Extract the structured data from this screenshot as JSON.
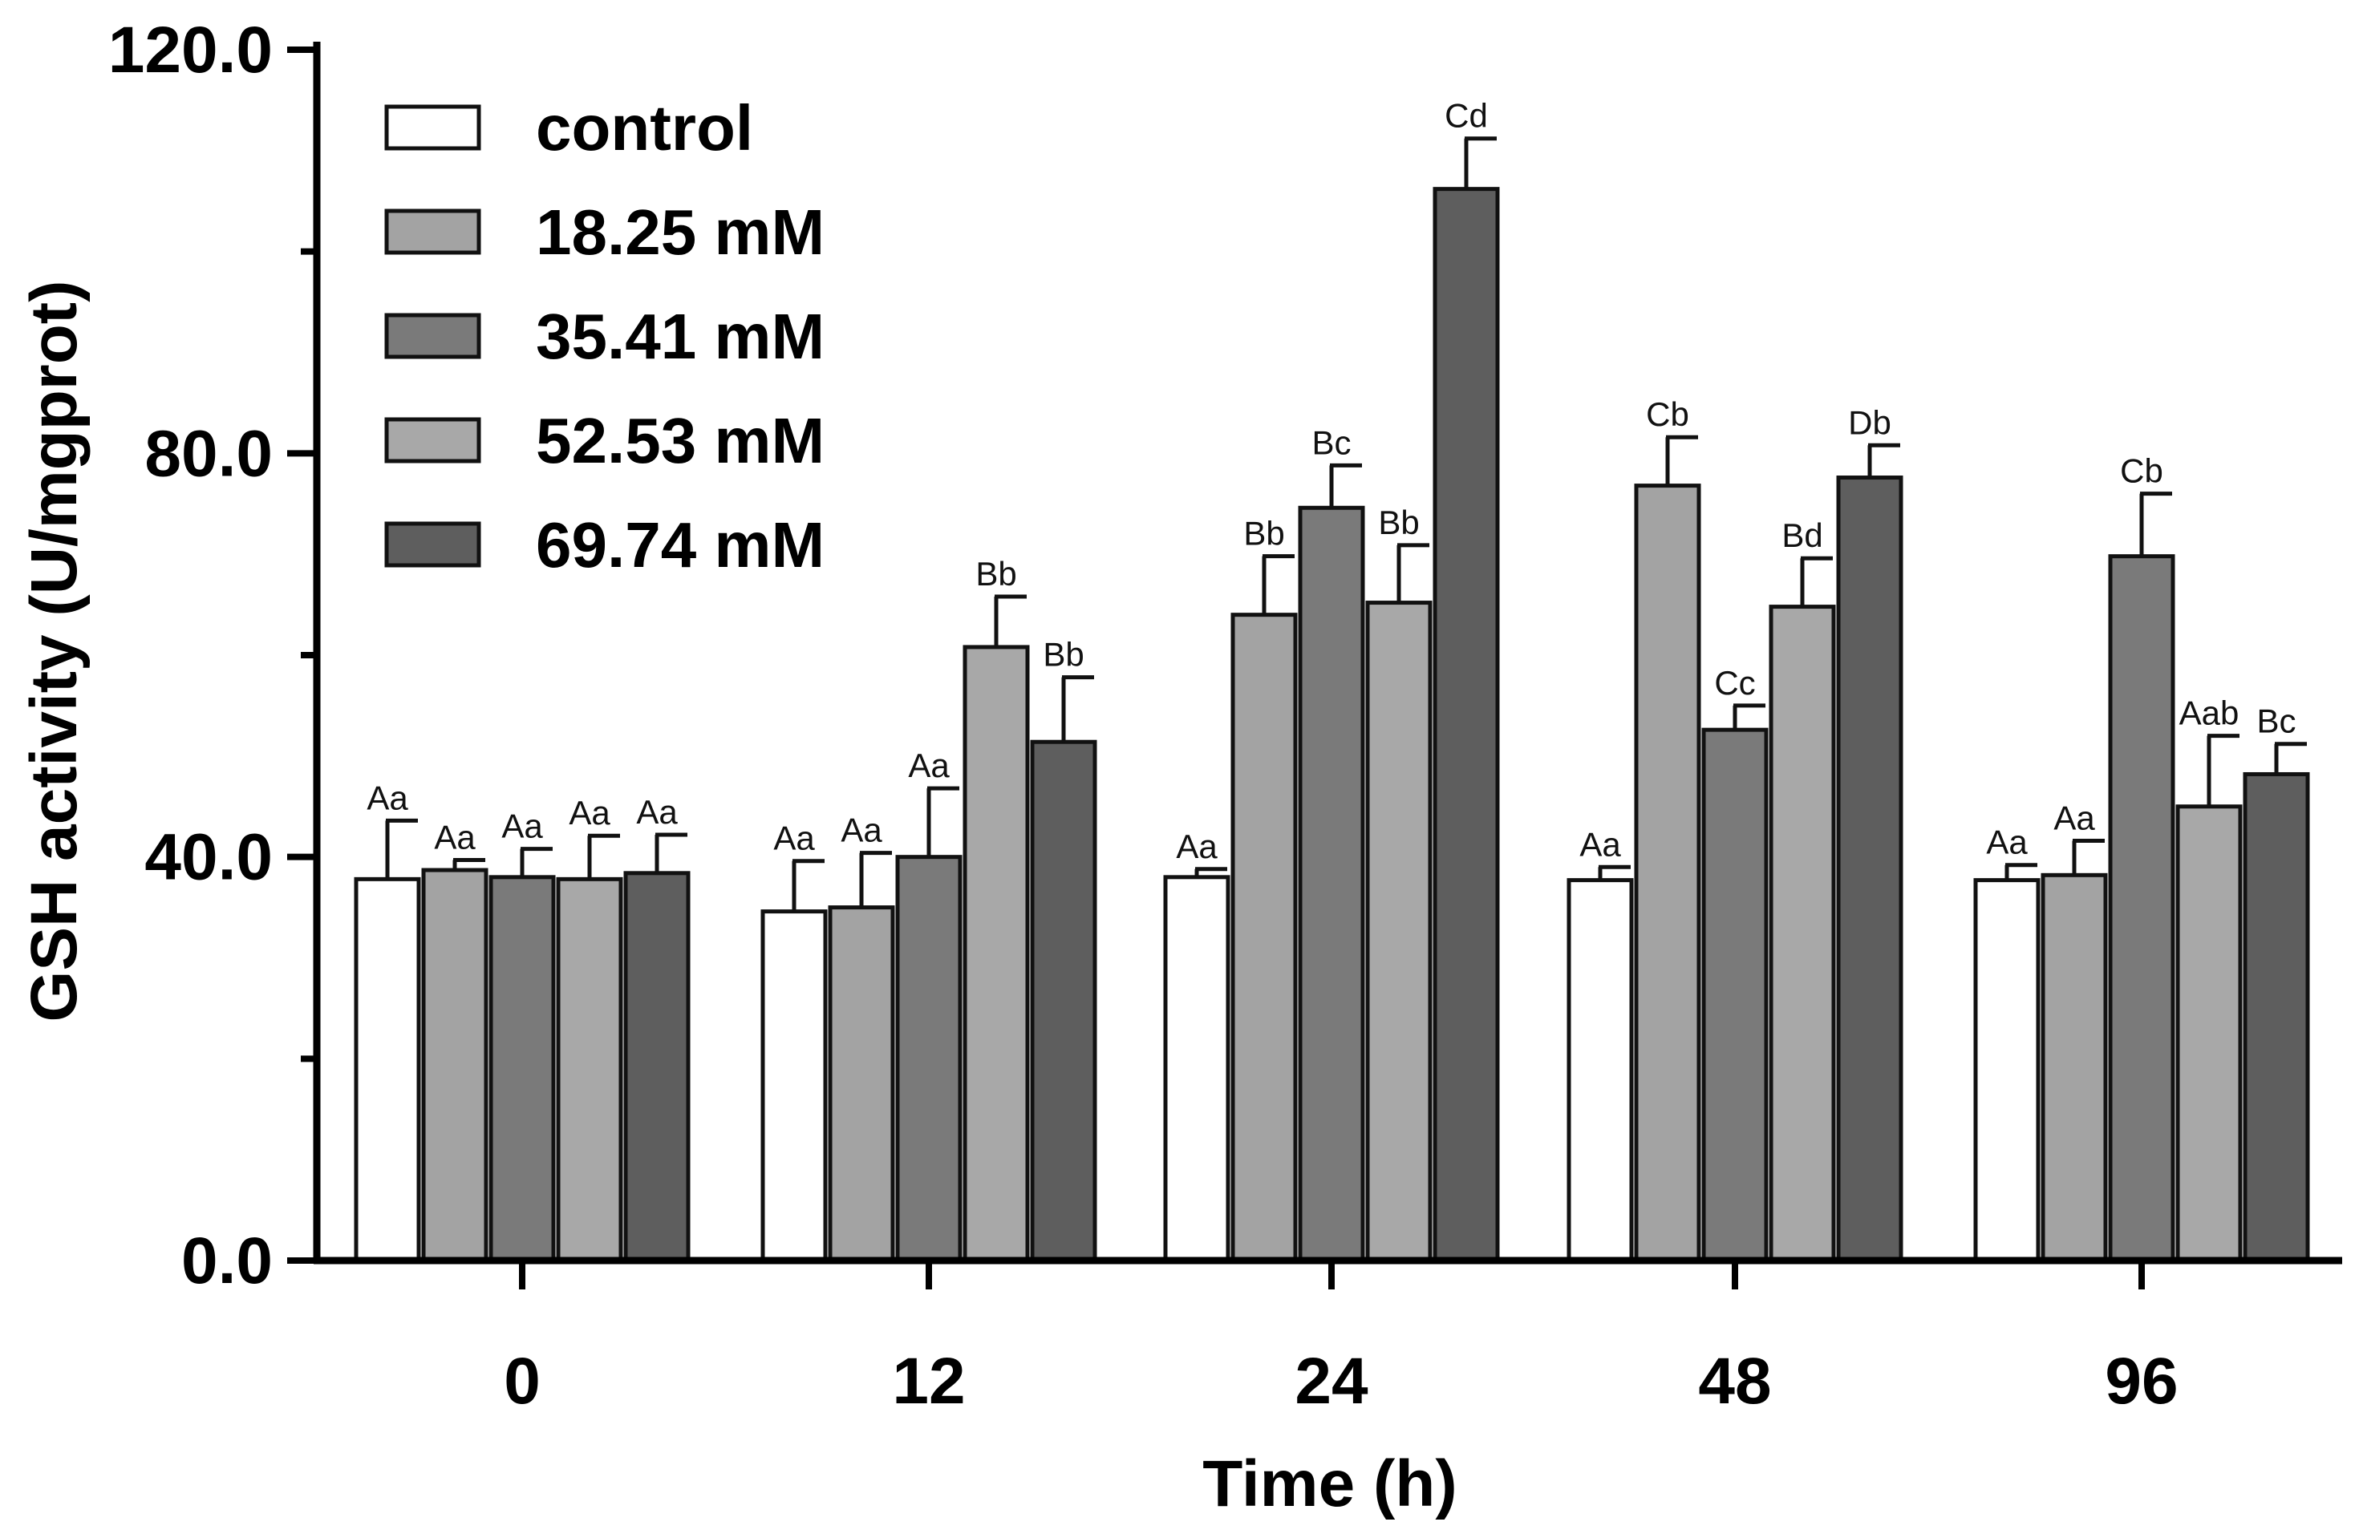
{
  "chart_data": {
    "type": "bar",
    "title": "",
    "xlabel": "Time (h)",
    "ylabel": "GSH activity (U/mgprot)",
    "ylim": [
      0,
      120
    ],
    "yticks": [
      "0.0",
      "40.0",
      "80.0",
      "120.0"
    ],
    "categories": [
      "0",
      "12",
      "24",
      "48",
      "96"
    ],
    "legend_position": "top-left",
    "series": [
      {
        "name": "control",
        "color": "#ffffff",
        "values": [
          37.8,
          34.6,
          38.0,
          37.7,
          37.7
        ],
        "errors": [
          5.8,
          5.0,
          0.8,
          1.3,
          1.5
        ],
        "labels": [
          "Aa",
          "Aa",
          "Aa",
          "Aa",
          "Aa"
        ]
      },
      {
        "name": "18.25 mM",
        "color": "#a3a3a3",
        "values": [
          38.7,
          35.0,
          64.0,
          76.8,
          38.2
        ],
        "errors": [
          1.0,
          5.4,
          5.8,
          4.8,
          3.4
        ],
        "labels": [
          "Aa",
          "Aa",
          "Bb",
          "Cb",
          "Aa"
        ]
      },
      {
        "name": "35.41 mM",
        "color": "#7a7a7a",
        "values": [
          38.0,
          40.0,
          74.6,
          52.6,
          69.8
        ],
        "errors": [
          2.8,
          6.8,
          4.2,
          2.4,
          6.2
        ],
        "labels": [
          "Aa",
          "Aa",
          "Bc",
          "Cc",
          "Cb"
        ]
      },
      {
        "name": "52.53 mM",
        "color": "#a8a8a8",
        "values": [
          37.8,
          60.8,
          65.2,
          64.8,
          45.0
        ],
        "errors": [
          4.3,
          5.0,
          5.7,
          4.8,
          7.0
        ],
        "labels": [
          "Aa",
          "Bb",
          "Bb",
          "Bd",
          "Aab"
        ]
      },
      {
        "name": "69.74 mM",
        "color": "#5e5e5e",
        "values": [
          38.4,
          51.4,
          106.2,
          77.6,
          48.2
        ],
        "errors": [
          3.8,
          6.4,
          5.0,
          3.2,
          3.0
        ],
        "labels": [
          "Aa",
          "Bb",
          "Cd",
          "Db",
          "Bc"
        ]
      }
    ]
  }
}
